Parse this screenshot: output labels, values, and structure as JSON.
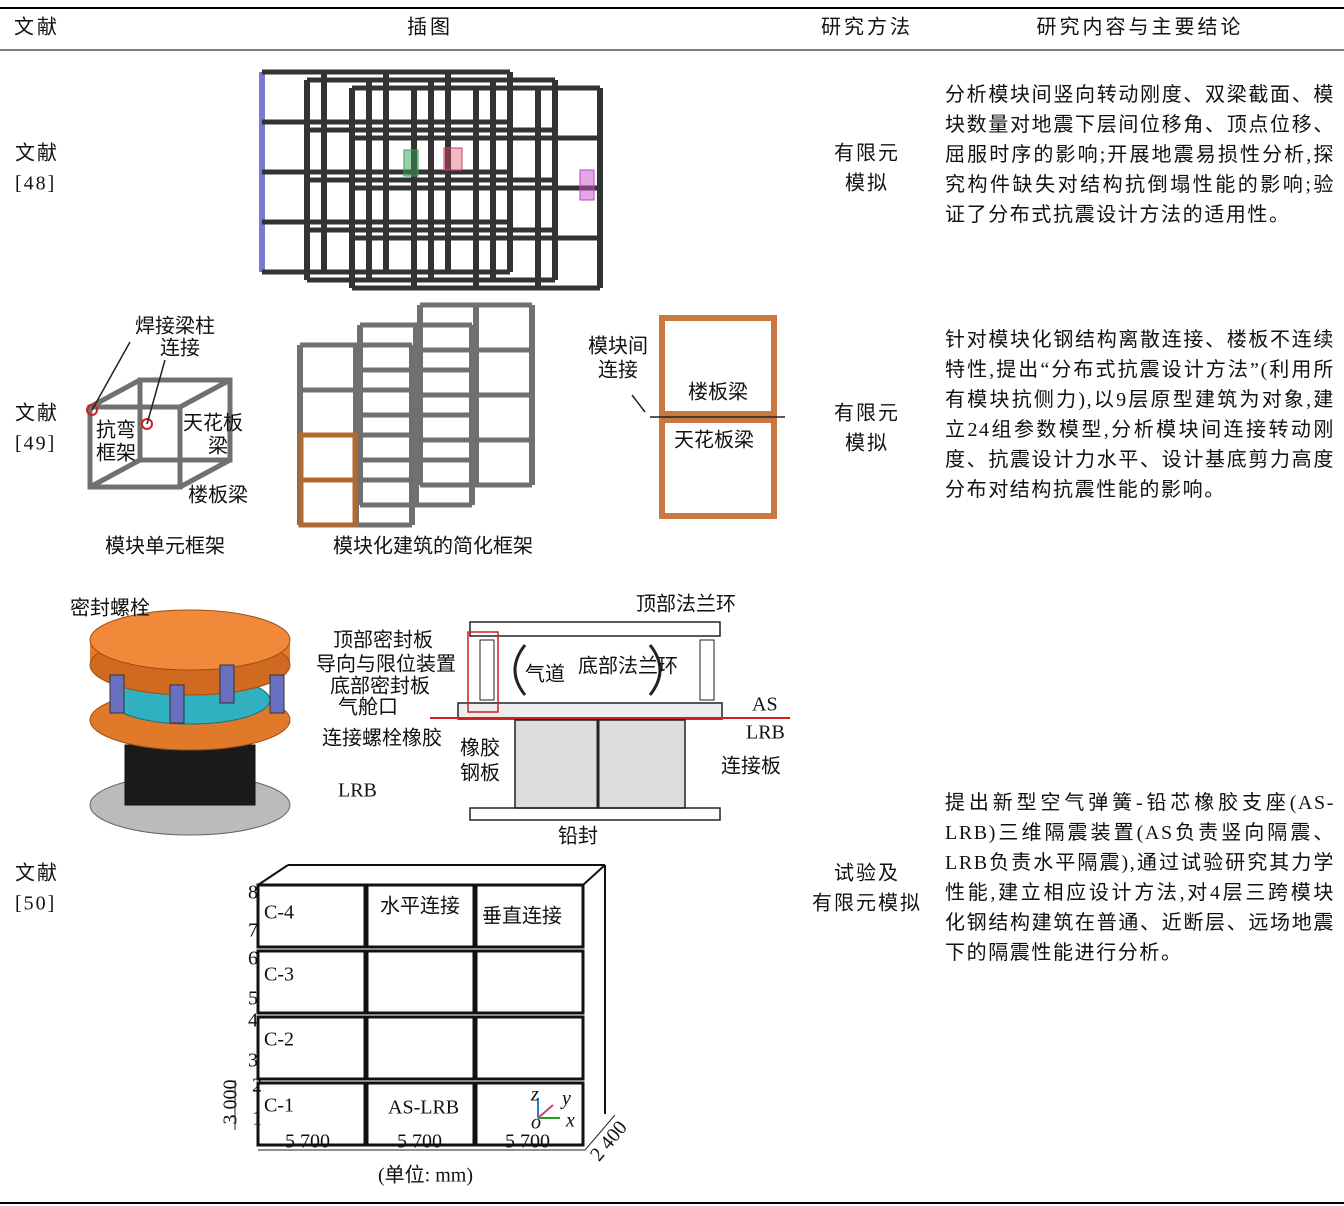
{
  "header": {
    "columns": [
      "文献",
      "插图",
      "研究方法",
      "研究内容与主要结论"
    ]
  },
  "rows": [
    {
      "ref": [
        "文献",
        "[48]"
      ],
      "method": [
        "有限元",
        "模拟"
      ],
      "conclusion": "分析模块间竖向转动刚度、双梁截面、模块数量对地震下层间位移角、顶点位移、屈服时序的影响;开展地震易损性分析,探究构件缺失对结构抗倒塌性能的影响;验证了分布式抗震设计方法的适用性。"
    },
    {
      "ref": [
        "文献",
        "[49]"
      ],
      "method": [
        "有限元",
        "模拟"
      ],
      "figure": {
        "labels": [
          "焊接梁柱",
          "连接",
          "抗弯",
          "框架",
          "天花板",
          "梁",
          "楼板梁",
          "模块单元框架",
          "模块化建筑的简化框架",
          "模块间",
          "连接",
          "楼板梁",
          "天花板梁"
        ]
      },
      "conclusion": "针对模块化钢结构离散连接、楼板不连续特性,提出“分布式抗震设计方法”(利用所有模块抗侧力),以9层原型建筑为对象,建立24组参数模型,分析模块间连接转动刚度、抗震设计力水平、设计基底剪力高度分布对结构抗震性能的影响。"
    },
    {
      "ref": [
        "文献",
        "[50]"
      ],
      "method": [
        "试验及",
        "有限元模拟"
      ],
      "figure": {
        "labels": [
          "密封螺栓",
          "顶部密封板",
          "导向与限位装置",
          "底部密封板",
          "气舱口",
          "连接螺栓橡胶",
          "LRB",
          "顶部法兰环",
          "气道",
          "底部法兰环",
          "AS",
          "LRB",
          "连接板",
          "橡胶",
          "钢板",
          "铅封",
          "C-4",
          "C-3",
          "C-2",
          "C-1",
          "水平连接",
          "垂直连接",
          "AS-LRB",
          "5 700",
          "5 700",
          "5 700",
          "3 000",
          "2 400",
          "(单位: mm)",
          "8",
          "7",
          "6",
          "5",
          "4",
          "3",
          "2",
          "1",
          "z",
          "y",
          "o",
          "x"
        ]
      },
      "conclusion": "提出新型空气弹簧-铅芯橡胶支座(AS-LRB)三维隔震装置(AS负责竖向隔震、LRB负责水平隔震),通过试验研究其力学性能,建立相应设计方法,对4层三跨模块化钢结构建筑在普通、近断层、远场地震下的隔震性能进行分析。"
    }
  ]
}
